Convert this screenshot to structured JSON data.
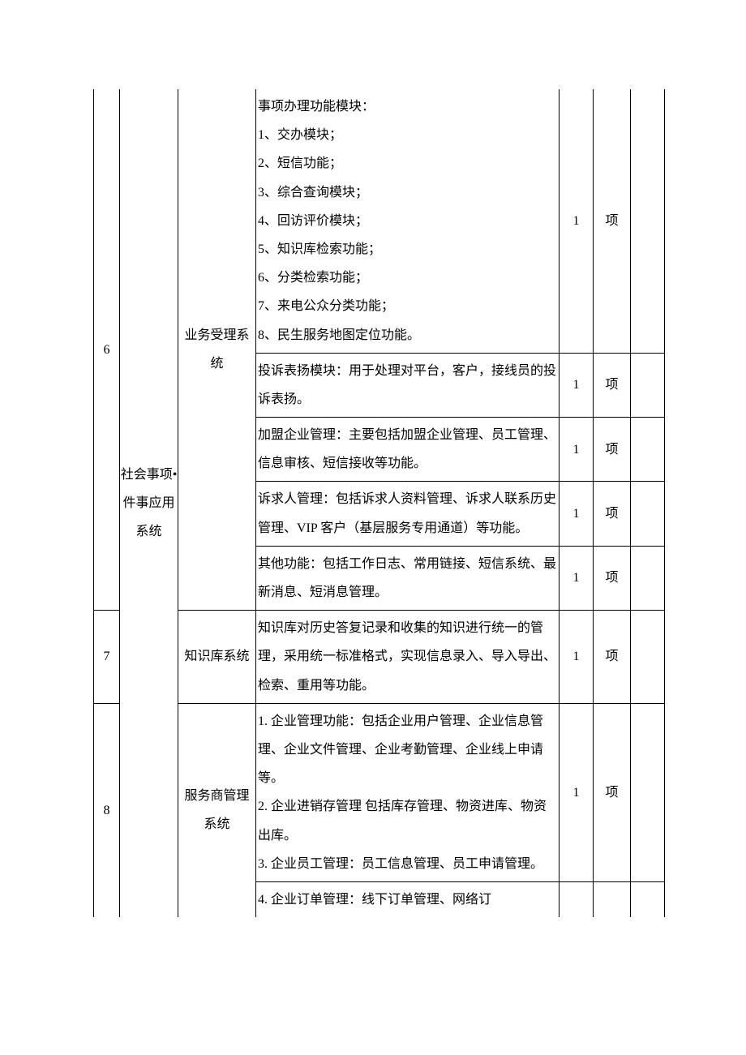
{
  "table": {
    "category_label": "社会事项•件事应用系统",
    "rows": [
      {
        "idx": "6",
        "system": "业务受理系统",
        "items": [
          {
            "desc_lines": [
              "事项办理功能模块：",
              "1、交办模块；",
              "2、短信功能；",
              "3、综合查询模块；",
              "4、回访评价模块；",
              "5、知识库检索功能；",
              "6、分类检索功能；",
              "7、来电公众分类功能；",
              "8、民生服务地图定位功能。"
            ],
            "qty": "1",
            "unit": "项"
          },
          {
            "desc_lines": [
              "投诉表扬模块：用于处理对平台，客户，接线员的投诉表扬。"
            ],
            "qty": "1",
            "unit": "项"
          },
          {
            "desc_lines": [
              "加盟企业管理：主要包括加盟企业管理、员工管理、信息审核、短信接收等功能。"
            ],
            "qty": "1",
            "unit": "项"
          },
          {
            "desc_lines": [
              "诉求人管理：包括诉求人资料管理、诉求人联系历史管理、VIP 客户（基层服务专用通道）等功能。"
            ],
            "qty": "1",
            "unit": "项"
          },
          {
            "desc_lines": [
              "其他功能：包括工作日志、常用链接、短信系统、最新消息、短消息管理。"
            ],
            "qty": "1",
            "unit": "项"
          }
        ]
      },
      {
        "idx": "7",
        "system": "知识库系统",
        "items": [
          {
            "desc_lines": [
              "知识库对历史答复记录和收集的知识进行统一的管理，采用统一标准格式，实现信息录入、导入导出、检索、重用等功能。"
            ],
            "qty": "1",
            "unit": "项"
          }
        ]
      },
      {
        "idx": "8",
        "system": "服务商管理系统",
        "items": [
          {
            "desc_lines": [
              "1. 企业管理功能：包括企业用户管理、企业信息管理、企业文件管理、企业考勤管理、企业线上申请等。",
              "2. 企业进销存管理 包括库存管理、物资进库、物资出库。",
              "3. 企业员工管理：员工信息管理、员工申请管理。"
            ],
            "qty": "1",
            "unit": "项"
          },
          {
            "desc_lines": [
              "4. 企业订单管理：线下订单管理、网络订"
            ],
            "qty": "",
            "unit": "",
            "open_bottom": true
          }
        ]
      }
    ]
  },
  "style": {
    "border_color": "#000000",
    "background_color": "#ffffff",
    "text_color": "#000000",
    "font_size_pt": 12,
    "line_height": 2.2
  }
}
